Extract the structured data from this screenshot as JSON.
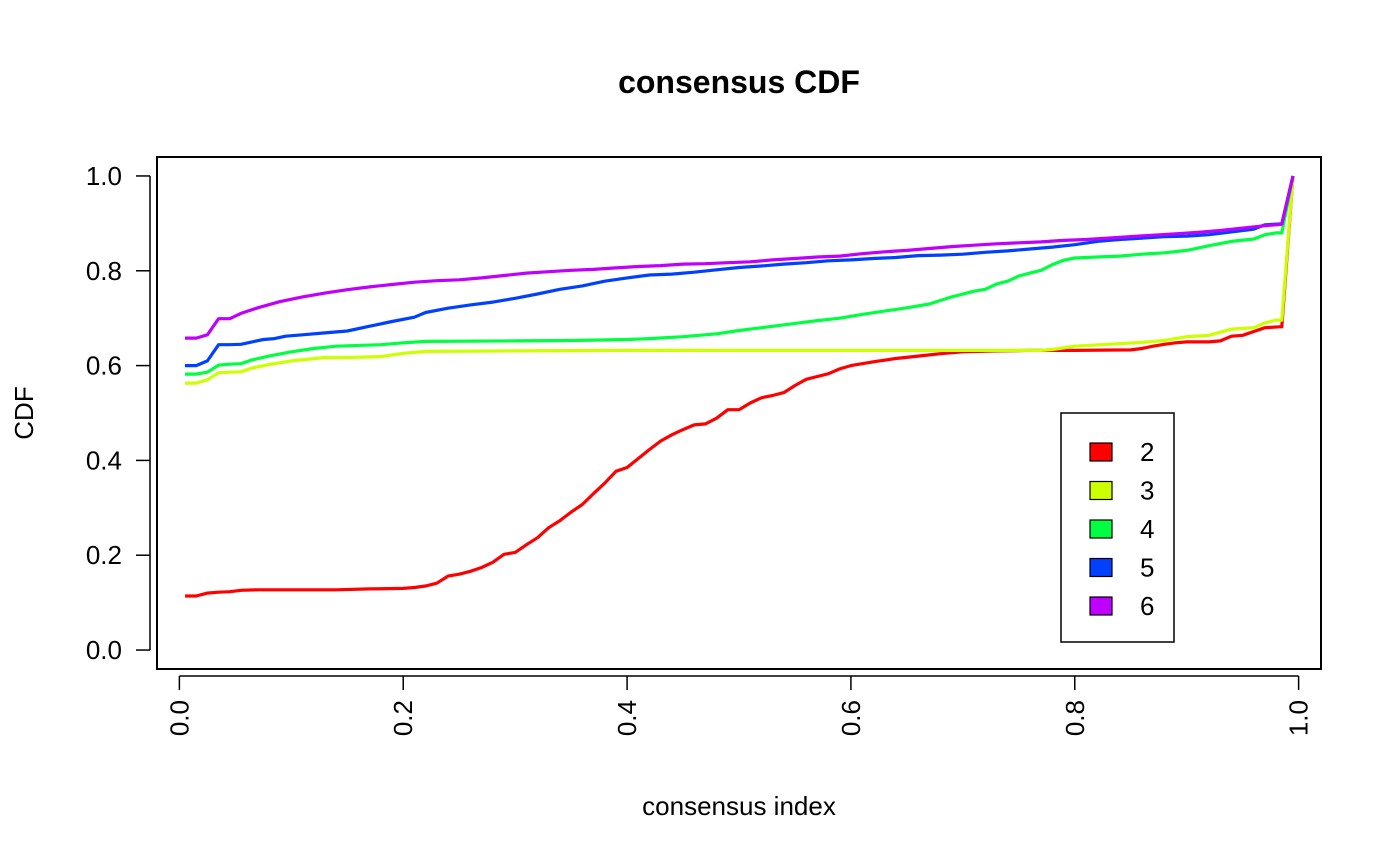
{
  "chart_data": {
    "type": "line",
    "title": "consensus CDF",
    "xlabel": "consensus index",
    "ylabel": "CDF",
    "xlim": [
      -0.02,
      1.02
    ],
    "ylim": [
      -0.04,
      1.04
    ],
    "x_ticks": [
      0.0,
      0.2,
      0.4,
      0.6,
      0.8,
      1.0
    ],
    "x_tick_labels": [
      "0.0",
      "0.2",
      "0.4",
      "0.6",
      "0.8",
      "1.0"
    ],
    "y_ticks": [
      0.0,
      0.2,
      0.4,
      0.6,
      0.8,
      1.0
    ],
    "y_tick_labels": [
      "0.0",
      "0.2",
      "0.4",
      "0.6",
      "0.8",
      "1.0"
    ],
    "grid": false,
    "legend_position": "bottom-right",
    "series": [
      {
        "name": "2",
        "color": "#ff0000",
        "points": [
          [
            0.005,
            0.114
          ],
          [
            0.015,
            0.114
          ],
          [
            0.025,
            0.12
          ],
          [
            0.035,
            0.122
          ],
          [
            0.045,
            0.123
          ],
          [
            0.055,
            0.126
          ],
          [
            0.07,
            0.127
          ],
          [
            0.1,
            0.127
          ],
          [
            0.14,
            0.127
          ],
          [
            0.17,
            0.129
          ],
          [
            0.2,
            0.13
          ],
          [
            0.21,
            0.132
          ],
          [
            0.22,
            0.135
          ],
          [
            0.23,
            0.141
          ],
          [
            0.24,
            0.156
          ],
          [
            0.25,
            0.16
          ],
          [
            0.26,
            0.166
          ],
          [
            0.27,
            0.174
          ],
          [
            0.28,
            0.185
          ],
          [
            0.29,
            0.202
          ],
          [
            0.3,
            0.206
          ],
          [
            0.31,
            0.222
          ],
          [
            0.32,
            0.237
          ],
          [
            0.33,
            0.258
          ],
          [
            0.34,
            0.273
          ],
          [
            0.35,
            0.291
          ],
          [
            0.36,
            0.307
          ],
          [
            0.37,
            0.33
          ],
          [
            0.38,
            0.352
          ],
          [
            0.39,
            0.377
          ],
          [
            0.4,
            0.385
          ],
          [
            0.41,
            0.404
          ],
          [
            0.42,
            0.423
          ],
          [
            0.43,
            0.441
          ],
          [
            0.44,
            0.454
          ],
          [
            0.45,
            0.465
          ],
          [
            0.46,
            0.475
          ],
          [
            0.47,
            0.477
          ],
          [
            0.48,
            0.489
          ],
          [
            0.49,
            0.507
          ],
          [
            0.5,
            0.507
          ],
          [
            0.51,
            0.521
          ],
          [
            0.52,
            0.532
          ],
          [
            0.53,
            0.537
          ],
          [
            0.54,
            0.543
          ],
          [
            0.55,
            0.558
          ],
          [
            0.56,
            0.571
          ],
          [
            0.57,
            0.577
          ],
          [
            0.58,
            0.583
          ],
          [
            0.59,
            0.593
          ],
          [
            0.6,
            0.6
          ],
          [
            0.62,
            0.608
          ],
          [
            0.64,
            0.615
          ],
          [
            0.66,
            0.62
          ],
          [
            0.68,
            0.625
          ],
          [
            0.7,
            0.629
          ],
          [
            0.73,
            0.631
          ],
          [
            0.76,
            0.632
          ],
          [
            0.8,
            0.632
          ],
          [
            0.85,
            0.633
          ],
          [
            0.86,
            0.636
          ],
          [
            0.87,
            0.641
          ],
          [
            0.88,
            0.645
          ],
          [
            0.89,
            0.648
          ],
          [
            0.9,
            0.65
          ],
          [
            0.92,
            0.65
          ],
          [
            0.93,
            0.652
          ],
          [
            0.94,
            0.662
          ],
          [
            0.95,
            0.664
          ],
          [
            0.96,
            0.672
          ],
          [
            0.97,
            0.68
          ],
          [
            0.985,
            0.682
          ],
          [
            0.995,
            1.0
          ]
        ]
      },
      {
        "name": "3",
        "color": "#ccff00",
        "points": [
          [
            0.005,
            0.563
          ],
          [
            0.015,
            0.563
          ],
          [
            0.025,
            0.57
          ],
          [
            0.035,
            0.585
          ],
          [
            0.045,
            0.586
          ],
          [
            0.055,
            0.587
          ],
          [
            0.065,
            0.595
          ],
          [
            0.08,
            0.602
          ],
          [
            0.1,
            0.61
          ],
          [
            0.13,
            0.617
          ],
          [
            0.15,
            0.617
          ],
          [
            0.18,
            0.619
          ],
          [
            0.2,
            0.626
          ],
          [
            0.22,
            0.63
          ],
          [
            0.3,
            0.631
          ],
          [
            0.4,
            0.632
          ],
          [
            0.5,
            0.632
          ],
          [
            0.6,
            0.632
          ],
          [
            0.7,
            0.632
          ],
          [
            0.77,
            0.632
          ],
          [
            0.78,
            0.634
          ],
          [
            0.8,
            0.641
          ],
          [
            0.83,
            0.645
          ],
          [
            0.86,
            0.649
          ],
          [
            0.88,
            0.653
          ],
          [
            0.9,
            0.661
          ],
          [
            0.92,
            0.664
          ],
          [
            0.94,
            0.677
          ],
          [
            0.96,
            0.68
          ],
          [
            0.97,
            0.69
          ],
          [
            0.98,
            0.696
          ],
          [
            0.985,
            0.696
          ],
          [
            0.995,
            1.0
          ]
        ]
      },
      {
        "name": "4",
        "color": "#00ff40",
        "points": [
          [
            0.005,
            0.582
          ],
          [
            0.015,
            0.582
          ],
          [
            0.025,
            0.586
          ],
          [
            0.035,
            0.601
          ],
          [
            0.045,
            0.603
          ],
          [
            0.055,
            0.604
          ],
          [
            0.065,
            0.612
          ],
          [
            0.08,
            0.62
          ],
          [
            0.1,
            0.629
          ],
          [
            0.12,
            0.636
          ],
          [
            0.14,
            0.641
          ],
          [
            0.18,
            0.644
          ],
          [
            0.2,
            0.648
          ],
          [
            0.22,
            0.651
          ],
          [
            0.3,
            0.652
          ],
          [
            0.35,
            0.653
          ],
          [
            0.4,
            0.655
          ],
          [
            0.42,
            0.657
          ],
          [
            0.45,
            0.661
          ],
          [
            0.48,
            0.667
          ],
          [
            0.5,
            0.674
          ],
          [
            0.52,
            0.68
          ],
          [
            0.55,
            0.689
          ],
          [
            0.57,
            0.695
          ],
          [
            0.59,
            0.7
          ],
          [
            0.61,
            0.708
          ],
          [
            0.63,
            0.715
          ],
          [
            0.65,
            0.722
          ],
          [
            0.67,
            0.73
          ],
          [
            0.69,
            0.745
          ],
          [
            0.71,
            0.757
          ],
          [
            0.72,
            0.761
          ],
          [
            0.73,
            0.772
          ],
          [
            0.74,
            0.778
          ],
          [
            0.75,
            0.789
          ],
          [
            0.76,
            0.795
          ],
          [
            0.77,
            0.801
          ],
          [
            0.78,
            0.813
          ],
          [
            0.79,
            0.822
          ],
          [
            0.8,
            0.827
          ],
          [
            0.82,
            0.829
          ],
          [
            0.84,
            0.831
          ],
          [
            0.86,
            0.835
          ],
          [
            0.88,
            0.838
          ],
          [
            0.9,
            0.843
          ],
          [
            0.92,
            0.853
          ],
          [
            0.94,
            0.862
          ],
          [
            0.96,
            0.867
          ],
          [
            0.97,
            0.876
          ],
          [
            0.98,
            0.88
          ],
          [
            0.985,
            0.88
          ],
          [
            0.995,
            1.0
          ]
        ]
      },
      {
        "name": "5",
        "color": "#0040ff",
        "points": [
          [
            0.005,
            0.6
          ],
          [
            0.015,
            0.6
          ],
          [
            0.025,
            0.61
          ],
          [
            0.035,
            0.644
          ],
          [
            0.045,
            0.644
          ],
          [
            0.055,
            0.645
          ],
          [
            0.065,
            0.65
          ],
          [
            0.075,
            0.655
          ],
          [
            0.085,
            0.657
          ],
          [
            0.095,
            0.662
          ],
          [
            0.11,
            0.665
          ],
          [
            0.13,
            0.669
          ],
          [
            0.15,
            0.673
          ],
          [
            0.17,
            0.683
          ],
          [
            0.19,
            0.693
          ],
          [
            0.21,
            0.702
          ],
          [
            0.22,
            0.712
          ],
          [
            0.24,
            0.721
          ],
          [
            0.26,
            0.728
          ],
          [
            0.28,
            0.734
          ],
          [
            0.3,
            0.742
          ],
          [
            0.32,
            0.751
          ],
          [
            0.34,
            0.761
          ],
          [
            0.36,
            0.768
          ],
          [
            0.38,
            0.778
          ],
          [
            0.4,
            0.785
          ],
          [
            0.42,
            0.791
          ],
          [
            0.44,
            0.793
          ],
          [
            0.46,
            0.797
          ],
          [
            0.48,
            0.802
          ],
          [
            0.5,
            0.807
          ],
          [
            0.52,
            0.81
          ],
          [
            0.54,
            0.814
          ],
          [
            0.56,
            0.817
          ],
          [
            0.58,
            0.821
          ],
          [
            0.6,
            0.823
          ],
          [
            0.62,
            0.826
          ],
          [
            0.64,
            0.828
          ],
          [
            0.66,
            0.832
          ],
          [
            0.68,
            0.833
          ],
          [
            0.7,
            0.835
          ],
          [
            0.72,
            0.839
          ],
          [
            0.74,
            0.842
          ],
          [
            0.76,
            0.846
          ],
          [
            0.78,
            0.85
          ],
          [
            0.8,
            0.855
          ],
          [
            0.82,
            0.862
          ],
          [
            0.84,
            0.866
          ],
          [
            0.86,
            0.869
          ],
          [
            0.88,
            0.872
          ],
          [
            0.9,
            0.873
          ],
          [
            0.92,
            0.876
          ],
          [
            0.94,
            0.882
          ],
          [
            0.96,
            0.888
          ],
          [
            0.97,
            0.897
          ],
          [
            0.985,
            0.899
          ],
          [
            0.995,
            1.0
          ]
        ]
      },
      {
        "name": "6",
        "color": "#bf00ff",
        "points": [
          [
            0.005,
            0.658
          ],
          [
            0.015,
            0.658
          ],
          [
            0.025,
            0.665
          ],
          [
            0.035,
            0.699
          ],
          [
            0.045,
            0.699
          ],
          [
            0.055,
            0.71
          ],
          [
            0.07,
            0.722
          ],
          [
            0.09,
            0.735
          ],
          [
            0.11,
            0.745
          ],
          [
            0.13,
            0.753
          ],
          [
            0.15,
            0.76
          ],
          [
            0.17,
            0.766
          ],
          [
            0.19,
            0.771
          ],
          [
            0.21,
            0.776
          ],
          [
            0.23,
            0.779
          ],
          [
            0.25,
            0.781
          ],
          [
            0.27,
            0.785
          ],
          [
            0.29,
            0.79
          ],
          [
            0.31,
            0.795
          ],
          [
            0.33,
            0.798
          ],
          [
            0.35,
            0.801
          ],
          [
            0.37,
            0.803
          ],
          [
            0.39,
            0.806
          ],
          [
            0.41,
            0.809
          ],
          [
            0.43,
            0.811
          ],
          [
            0.45,
            0.814
          ],
          [
            0.47,
            0.815
          ],
          [
            0.49,
            0.817
          ],
          [
            0.51,
            0.819
          ],
          [
            0.53,
            0.823
          ],
          [
            0.55,
            0.826
          ],
          [
            0.57,
            0.829
          ],
          [
            0.59,
            0.831
          ],
          [
            0.61,
            0.836
          ],
          [
            0.63,
            0.84
          ],
          [
            0.65,
            0.843
          ],
          [
            0.67,
            0.847
          ],
          [
            0.69,
            0.851
          ],
          [
            0.71,
            0.854
          ],
          [
            0.73,
            0.857
          ],
          [
            0.75,
            0.859
          ],
          [
            0.77,
            0.861
          ],
          [
            0.79,
            0.864
          ],
          [
            0.81,
            0.866
          ],
          [
            0.83,
            0.869
          ],
          [
            0.85,
            0.872
          ],
          [
            0.87,
            0.875
          ],
          [
            0.89,
            0.878
          ],
          [
            0.91,
            0.881
          ],
          [
            0.93,
            0.885
          ],
          [
            0.95,
            0.89
          ],
          [
            0.97,
            0.895
          ],
          [
            0.985,
            0.898
          ],
          [
            0.995,
            1.0
          ]
        ]
      }
    ]
  }
}
